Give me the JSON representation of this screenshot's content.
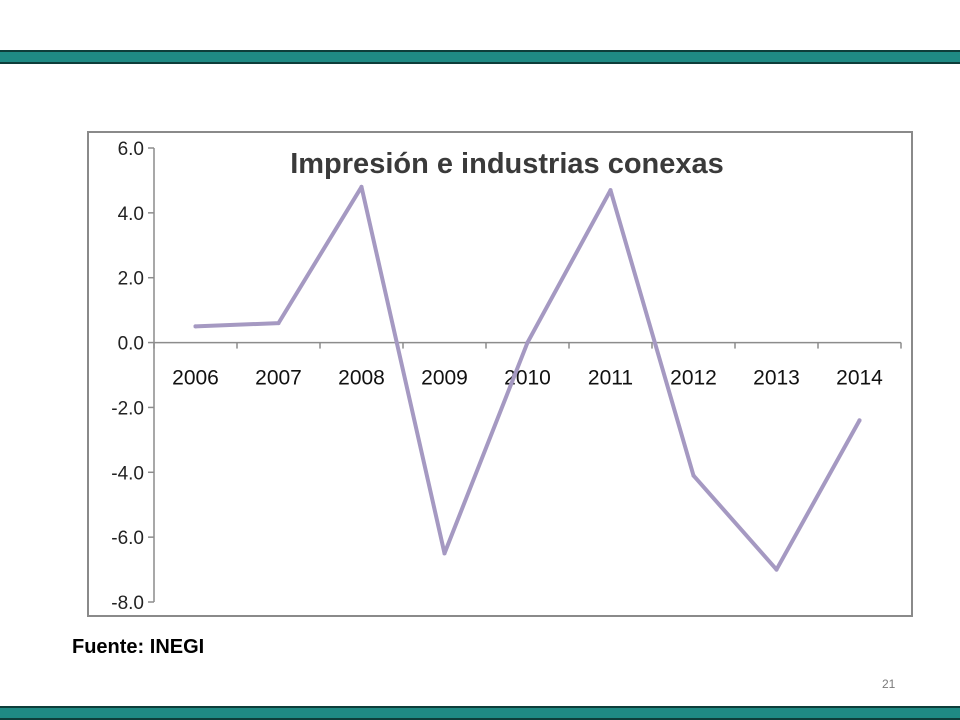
{
  "slide": {
    "source": "Fuente: INEGI",
    "page_number": "21",
    "accent_color": "#1f8a84"
  },
  "chart_data": {
    "type": "line",
    "title": "Impresión e industrias conexas",
    "categories": [
      "2006",
      "2007",
      "2008",
      "2009",
      "2010",
      "2011",
      "2012",
      "2013",
      "2014"
    ],
    "series": [
      {
        "values": [
          0.5,
          0.6,
          4.8,
          -6.5,
          0.0,
          4.7,
          -4.1,
          -7.0,
          -2.4
        ],
        "color": "#a599c2"
      }
    ],
    "yticks": [
      "6.0",
      "4.0",
      "2.0",
      "0.0",
      "-2.0",
      "-4.0",
      "-6.0",
      "-8.0"
    ],
    "ylim": [
      -8,
      6
    ],
    "xlabel": "",
    "ylabel": "",
    "grid": false,
    "legend": "none"
  }
}
